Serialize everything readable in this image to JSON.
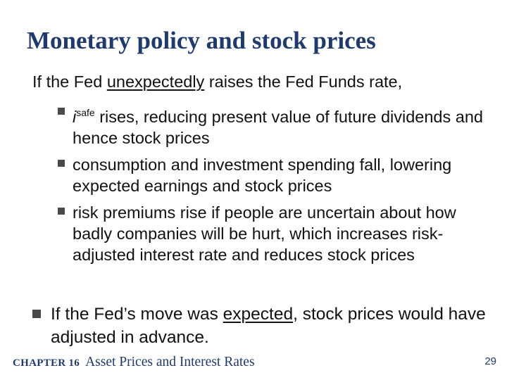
{
  "title": "Monetary policy and stock prices",
  "intro": {
    "before": "If the Fed ",
    "emphasis": "unexpectedly",
    "after": " raises the Fed Funds rate,"
  },
  "sub_bullets": [
    {
      "symbol": "i",
      "superscript": "safe",
      "text": " rises, reducing present value of future dividends and hence stock prices"
    },
    {
      "text": "consumption and investment spending fall, lowering expected earnings and stock prices"
    },
    {
      "text": "risk premiums rise if people are uncertain about how badly companies will be hurt, which increases risk-adjusted interest rate and reduces stock prices"
    }
  ],
  "main_bullet": {
    "before": "If the Fed’s move was ",
    "emphasis": "expected",
    "after": ", stock prices would have adjusted in advance."
  },
  "footer": {
    "chapter": "CHAPTER 16",
    "subject": "Asset Prices and Interest Rates",
    "page": "29"
  },
  "colors": {
    "title": "#1f3a6e",
    "text": "#111111",
    "bullet": "#4a4a4a"
  }
}
